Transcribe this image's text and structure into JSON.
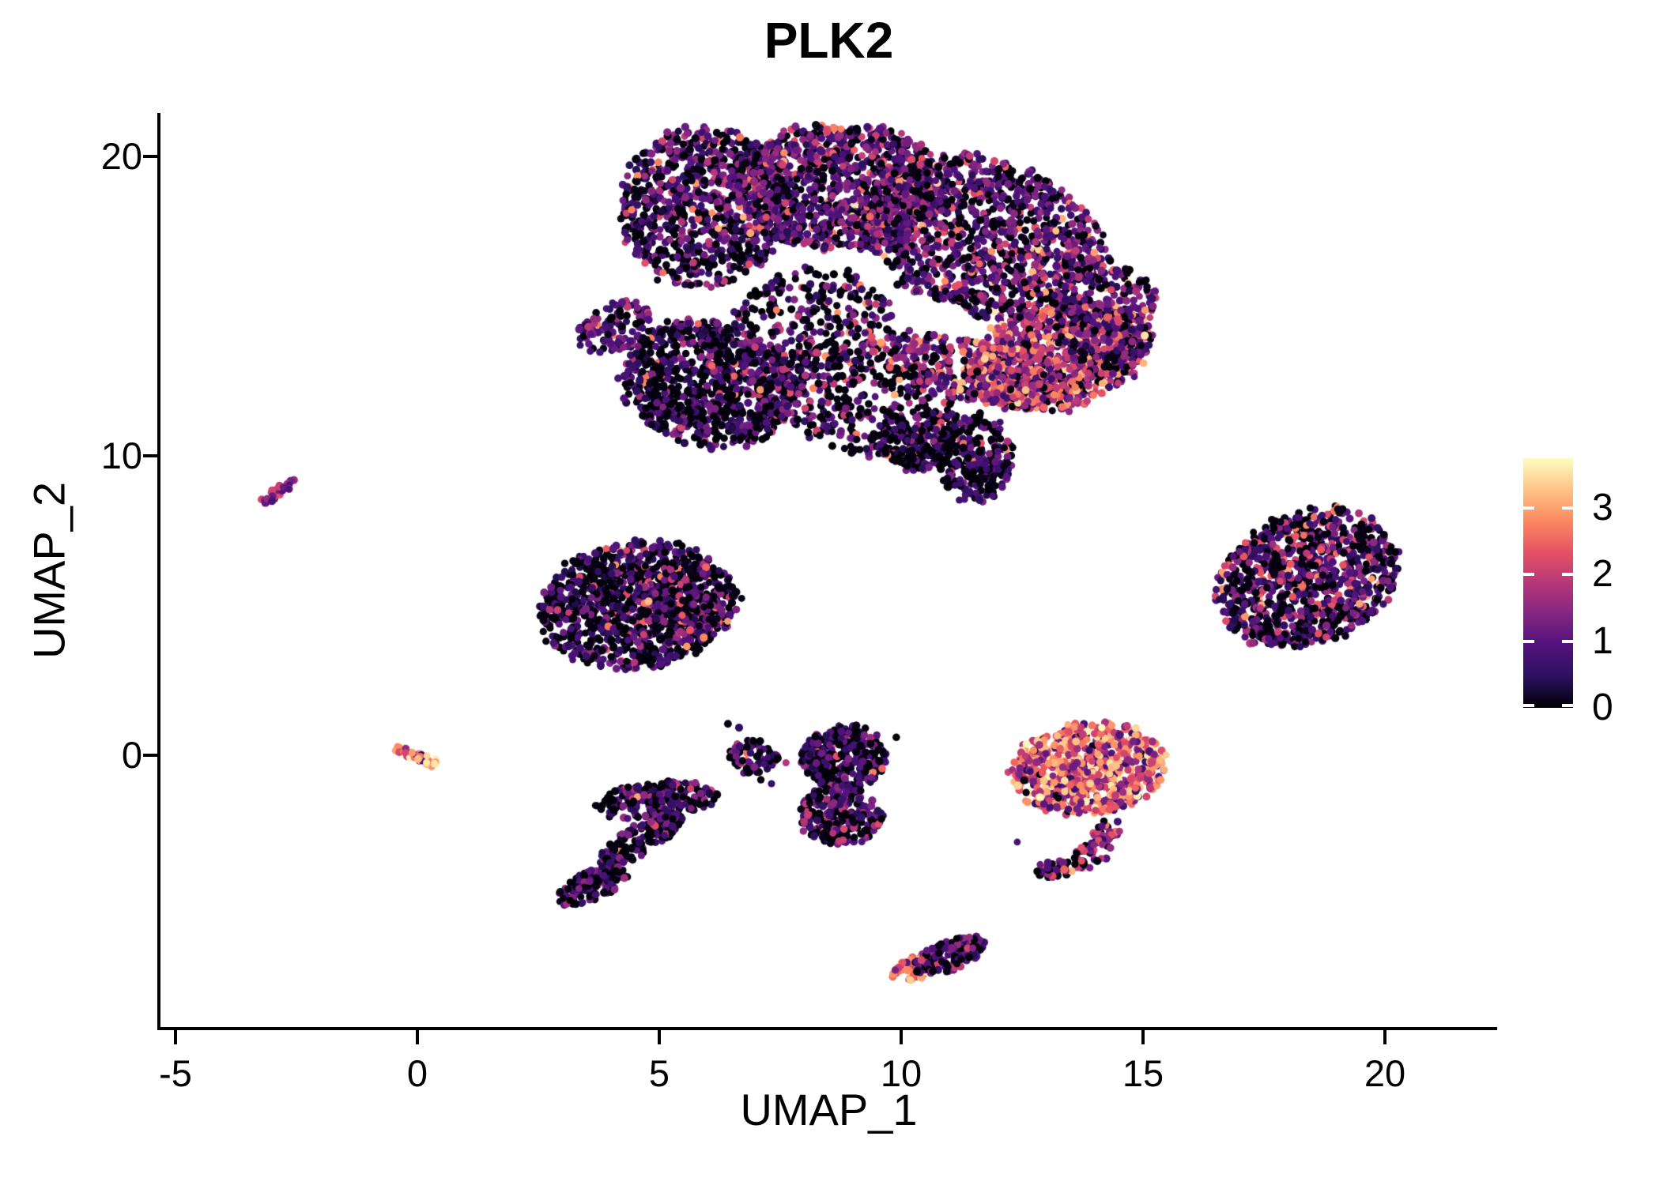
{
  "title": "PLK2",
  "axes": {
    "x_label": "UMAP_1",
    "y_label": "UMAP_2",
    "x_ticks": [
      -5,
      0,
      5,
      10,
      15,
      20
    ],
    "y_ticks": [
      0,
      10,
      20
    ],
    "x_range": [
      -5.3,
      22.3
    ],
    "y_range": [
      -9.1,
      21.4
    ]
  },
  "colorbar": {
    "ticks": [
      0,
      1,
      2,
      3
    ],
    "min_value": 0,
    "max_value": 3.74,
    "colormap_name": "magma",
    "colormap": [
      [
        0.0,
        "#000004"
      ],
      [
        0.125,
        "#2c115f"
      ],
      [
        0.25,
        "#51127c"
      ],
      [
        0.375,
        "#832681"
      ],
      [
        0.5,
        "#b73779"
      ],
      [
        0.625,
        "#e75263"
      ],
      [
        0.75,
        "#fc8961"
      ],
      [
        0.875,
        "#fec488"
      ],
      [
        1.0,
        "#fcfdbf"
      ]
    ]
  },
  "chart_data": {
    "type": "scatter",
    "title": "PLK2",
    "xlabel": "UMAP_1",
    "ylabel": "UMAP_2",
    "xlim": [
      -5.3,
      22.3
    ],
    "ylim": [
      -9.1,
      21.4
    ],
    "legend_position": "right",
    "grid": false,
    "point_radius_px": 4.6,
    "value_mixes": {
      "standard": [
        [
          0.28,
          0,
          0.12
        ],
        [
          0.22,
          0.35,
          0.95
        ],
        [
          0.3,
          0.85,
          1.6
        ],
        [
          0.13,
          1.5,
          2.3
        ],
        [
          0.06,
          2.2,
          3.2
        ],
        [
          0.01,
          3.2,
          3.6
        ]
      ],
      "standard_dark": [
        [
          0.36,
          0,
          0.12
        ],
        [
          0.24,
          0.3,
          0.9
        ],
        [
          0.26,
          0.8,
          1.5
        ],
        [
          0.1,
          1.4,
          2.2
        ],
        [
          0.04,
          2.2,
          3.1
        ]
      ],
      "verydark": [
        [
          0.52,
          0,
          0.1
        ],
        [
          0.26,
          0.3,
          0.9
        ],
        [
          0.15,
          0.8,
          1.4
        ],
        [
          0.05,
          1.3,
          2.2
        ],
        [
          0.02,
          2.2,
          3.0
        ]
      ],
      "dark": [
        [
          0.45,
          0,
          0.1
        ],
        [
          0.25,
          0.3,
          0.9
        ],
        [
          0.2,
          0.8,
          1.5
        ],
        [
          0.08,
          1.4,
          2.2
        ],
        [
          0.02,
          2.2,
          3.1
        ]
      ],
      "dark_purple": [
        [
          0.3,
          0,
          0.12
        ],
        [
          0.35,
          0.4,
          1.0
        ],
        [
          0.25,
          0.9,
          1.6
        ],
        [
          0.08,
          1.5,
          2.3
        ],
        [
          0.02,
          2.3,
          3.0
        ]
      ],
      "dark_pinkish": [
        [
          0.38,
          0,
          0.12
        ],
        [
          0.22,
          0.35,
          0.95
        ],
        [
          0.22,
          0.85,
          1.6
        ],
        [
          0.12,
          1.5,
          2.4
        ],
        [
          0.06,
          2.3,
          3.2
        ]
      ],
      "sparse_dark": [
        [
          0.5,
          0,
          0.1
        ],
        [
          0.2,
          0.3,
          0.9
        ],
        [
          0.18,
          0.8,
          1.5
        ],
        [
          0.08,
          1.4,
          2.3
        ],
        [
          0.04,
          2.2,
          3.2
        ]
      ],
      "warm_mid": [
        [
          0.12,
          0,
          0.12
        ],
        [
          0.18,
          0.5,
          1.2
        ],
        [
          0.3,
          1.2,
          2.0
        ],
        [
          0.25,
          1.9,
          2.7
        ],
        [
          0.12,
          2.6,
          3.3
        ],
        [
          0.03,
          3.3,
          3.6
        ]
      ],
      "warm_band": [
        [
          0.2,
          0,
          0.12
        ],
        [
          0.25,
          0.5,
          1.2
        ],
        [
          0.3,
          1.2,
          2.0
        ],
        [
          0.17,
          1.9,
          2.7
        ],
        [
          0.08,
          2.6,
          3.3
        ]
      ],
      "warm": [
        [
          0.05,
          0,
          0.12
        ],
        [
          0.1,
          0.5,
          1.2
        ],
        [
          0.2,
          1.2,
          2.0
        ],
        [
          0.32,
          2.0,
          2.9
        ],
        [
          0.25,
          2.8,
          3.4
        ],
        [
          0.08,
          3.3,
          3.74
        ]
      ],
      "orange_dash": [
        [
          0.1,
          0.5,
          1.1
        ],
        [
          0.2,
          1.4,
          2.2
        ],
        [
          0.45,
          2.6,
          3.3
        ],
        [
          0.15,
          3.2,
          3.6
        ],
        [
          0.1,
          3.5,
          3.74
        ]
      ],
      "dash_mix": [
        [
          0.2,
          0.4,
          0.9
        ],
        [
          0.45,
          0.9,
          1.6
        ],
        [
          0.3,
          1.6,
          2.3
        ],
        [
          0.05,
          2.3,
          2.9
        ]
      ]
    },
    "clusters": [
      {
        "name": "main-top-left",
        "type": "blob",
        "cx": 5.9,
        "cy": 18.3,
        "rx": 1.7,
        "ry": 2.7,
        "rot": -8,
        "n": 850,
        "mix": "standard_dark"
      },
      {
        "name": "main-top-mid",
        "type": "blob",
        "cx": 8.7,
        "cy": 19.0,
        "rx": 2.2,
        "ry": 2.1,
        "rot": 0,
        "n": 1050,
        "mix": "standard"
      },
      {
        "name": "main-top-right",
        "type": "blob",
        "cx": 11.7,
        "cy": 17.3,
        "rx": 2.5,
        "ry": 2.6,
        "rot": 15,
        "n": 1250,
        "mix": "standard"
      },
      {
        "name": "main-left-low",
        "type": "blob",
        "cx": 6.0,
        "cy": 12.4,
        "rx": 1.8,
        "ry": 2.1,
        "rot": 12,
        "n": 900,
        "mix": "verydark"
      },
      {
        "name": "main-left-tip",
        "type": "blob",
        "cx": 4.1,
        "cy": 14.3,
        "rx": 0.8,
        "ry": 0.8,
        "rot": -25,
        "n": 120,
        "mix": "dark_purple"
      },
      {
        "name": "main-channel",
        "type": "blob",
        "cx": 9.2,
        "cy": 11.7,
        "rx": 2.3,
        "ry": 1.6,
        "rot": 14,
        "n": 450,
        "mix": "sparse_dark"
      },
      {
        "name": "main-mid-sparse",
        "type": "blob",
        "cx": 8.2,
        "cy": 14.6,
        "rx": 1.6,
        "ry": 1.7,
        "rot": 0,
        "n": 280,
        "mix": "sparse_dark"
      },
      {
        "name": "main-dip-top",
        "type": "blob",
        "cx": 10.3,
        "cy": 10.3,
        "rx": 0.8,
        "ry": 0.8,
        "rot": 0,
        "n": 140,
        "mix": "verydark"
      },
      {
        "name": "main-dip",
        "type": "blob",
        "cx": 11.5,
        "cy": 9.9,
        "rx": 0.8,
        "ry": 1.5,
        "rot": 8,
        "n": 250,
        "mix": "verydark"
      },
      {
        "name": "main-warm-band",
        "type": "blob",
        "cx": 11.6,
        "cy": 12.8,
        "rx": 2.3,
        "ry": 1.0,
        "rot": 14,
        "n": 400,
        "mix": "warm_band"
      },
      {
        "name": "main-warm-lobe",
        "type": "blob",
        "cx": 13.3,
        "cy": 13.4,
        "rx": 1.9,
        "ry": 1.7,
        "rot": -12,
        "n": 850,
        "mix": "warm_mid"
      },
      {
        "name": "main-right-edge",
        "type": "blob",
        "cx": 14.2,
        "cy": 14.6,
        "rx": 1.1,
        "ry": 1.9,
        "rot": 10,
        "n": 300,
        "mix": "standard"
      },
      {
        "name": "mid-left",
        "type": "blob",
        "cx": 4.5,
        "cy": 5.0,
        "rx": 2.0,
        "ry": 2.1,
        "rot": -5,
        "n": 1000,
        "mix": "verydark"
      },
      {
        "name": "mid-left-pink",
        "type": "blob",
        "cx": 5.6,
        "cy": 5.3,
        "rx": 1.1,
        "ry": 1.2,
        "rot": 0,
        "n": 200,
        "mix": "dark_pinkish"
      },
      {
        "name": "right-cluster",
        "type": "blob",
        "cx": 18.4,
        "cy": 5.9,
        "rx": 1.9,
        "ry": 2.2,
        "rot": -20,
        "n": 1000,
        "mix": "dark_pinkish"
      },
      {
        "name": "warm-center",
        "type": "blob",
        "cx": 13.85,
        "cy": -0.45,
        "rx": 1.6,
        "ry": 1.5,
        "rot": -5,
        "n": 800,
        "mix": "warm"
      },
      {
        "name": "warm-tail-1",
        "type": "blob",
        "cx": 14.25,
        "cy": -2.5,
        "rx": 0.3,
        "ry": 0.45,
        "rot": 0,
        "n": 30,
        "mix": "warm_band"
      },
      {
        "name": "warm-tail-2",
        "type": "blob",
        "cx": 13.95,
        "cy": -3.3,
        "rx": 0.45,
        "ry": 0.4,
        "rot": -30,
        "n": 45,
        "mix": "warm_band"
      },
      {
        "name": "warm-tail-3",
        "type": "blob",
        "cx": 13.3,
        "cy": -3.75,
        "rx": 0.55,
        "ry": 0.3,
        "rot": -10,
        "n": 55,
        "mix": "dark_pinkish"
      },
      {
        "name": "s-cluster-top",
        "type": "blob",
        "cx": 4.95,
        "cy": -1.5,
        "rx": 1.25,
        "ry": 0.6,
        "rot": -6,
        "n": 240,
        "mix": "dark"
      },
      {
        "name": "s-cluster-mid",
        "type": "blob",
        "cx": 4.6,
        "cy": -2.8,
        "rx": 0.95,
        "ry": 0.5,
        "rot": -30,
        "n": 170,
        "mix": "dark"
      },
      {
        "name": "s-cluster-tail",
        "type": "blob",
        "cx": 3.65,
        "cy": -4.3,
        "rx": 0.8,
        "ry": 0.5,
        "rot": -25,
        "n": 150,
        "mix": "dark"
      },
      {
        "name": "vertical-top",
        "type": "blob",
        "cx": 8.8,
        "cy": -0.05,
        "rx": 0.9,
        "ry": 1.05,
        "rot": 0,
        "n": 300,
        "mix": "verydark"
      },
      {
        "name": "vertical-bottom",
        "type": "blob",
        "cx": 8.75,
        "cy": -2.0,
        "rx": 0.85,
        "ry": 1.0,
        "rot": 0,
        "n": 270,
        "mix": "dark"
      },
      {
        "name": "small-c-cluster",
        "type": "blob",
        "cx": 6.95,
        "cy": -0.05,
        "rx": 0.5,
        "ry": 0.6,
        "rot": 0,
        "n": 70,
        "mix": "dark"
      },
      {
        "name": "bottom-warm-tip",
        "type": "blob",
        "cx": 10.3,
        "cy": -7.1,
        "rx": 0.5,
        "ry": 0.38,
        "rot": -20,
        "n": 70,
        "mix": "warm"
      },
      {
        "name": "bottom-main",
        "type": "blob",
        "cx": 11.0,
        "cy": -6.7,
        "rx": 0.8,
        "ry": 0.48,
        "rot": -20,
        "n": 150,
        "mix": "dark_purple"
      },
      {
        "name": "left-dash",
        "type": "line",
        "x1": -3.2,
        "y1": 8.45,
        "x2": -2.52,
        "y2": 9.2,
        "w": 0.09,
        "n": 30,
        "mix": "dash_mix"
      },
      {
        "name": "orange-dash",
        "type": "line",
        "x1": -0.45,
        "y1": 0.2,
        "x2": 0.42,
        "y2": -0.3,
        "w": 0.09,
        "n": 40,
        "mix": "orange_dash"
      },
      {
        "name": "strays",
        "type": "points",
        "mix": "dark",
        "pts": [
          [
            7.62,
            -0.25,
            1.8
          ],
          [
            7.45,
            -0.1,
            0.05
          ],
          [
            7.1,
            -0.82,
            0.05
          ],
          [
            7.32,
            -0.95,
            0.55
          ],
          [
            6.42,
            1.05,
            0.05
          ],
          [
            6.65,
            0.92,
            0.45
          ],
          [
            9.9,
            0.6,
            0.05
          ],
          [
            12.4,
            -2.9,
            0.8
          ]
        ]
      }
    ]
  }
}
